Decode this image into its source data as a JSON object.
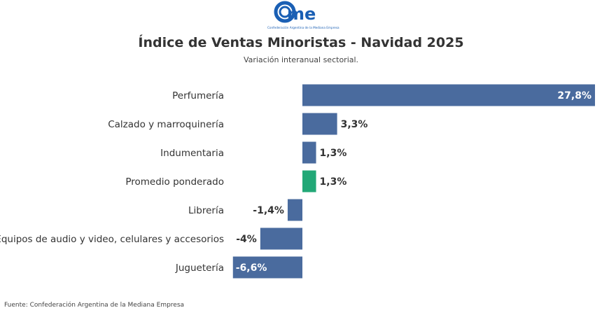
{
  "logo": {
    "text": "came",
    "tagline": "Confederación Argentina de la Mediana Empresa",
    "color": "#1a5fb4"
  },
  "chart_data": {
    "type": "bar",
    "orientation": "horizontal",
    "title": "Índice de Ventas Minoristas - Navidad 2025",
    "subtitle": "Variación interanual sectorial.",
    "categories": [
      "Perfumería",
      "Calzado y marroquinería",
      "Indumentaria",
      "Promedio ponderado",
      "Librería",
      "Equipos de audio y video, celulares y accesorios",
      "Juguetería"
    ],
    "values": [
      27.8,
      3.3,
      1.3,
      1.3,
      -1.4,
      -4,
      -6.6
    ],
    "data_labels": [
      "27,8%",
      "3,3%",
      "1,3%",
      "1,3%",
      "-1,4%",
      "-4%",
      "-6,6%"
    ],
    "colors": [
      "#4a6b9e",
      "#4a6b9e",
      "#4a6b9e",
      "#22a877",
      "#4a6b9e",
      "#4a6b9e",
      "#4a6b9e"
    ],
    "xlim": [
      -6.6,
      27.8
    ],
    "grid": false,
    "legend": "none"
  },
  "source": "Fuente: Confederación Argentina de la Mediana Empresa"
}
